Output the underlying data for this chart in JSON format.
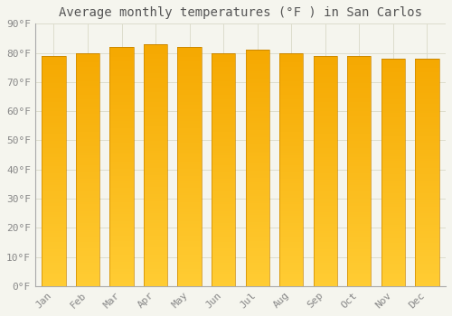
{
  "title": "Average monthly temperatures (°F ) in San Carlos",
  "months": [
    "Jan",
    "Feb",
    "Mar",
    "Apr",
    "May",
    "Jun",
    "Jul",
    "Aug",
    "Sep",
    "Oct",
    "Nov",
    "Dec"
  ],
  "values": [
    79,
    80,
    82,
    83,
    82,
    80,
    81,
    80,
    79,
    79,
    78,
    78
  ],
  "ylim": [
    0,
    90
  ],
  "ytick_step": 10,
  "bar_color_bottom": "#FFCC33",
  "bar_color_top": "#F5A800",
  "bar_edge_color": "#CC8800",
  "background_color": "#F5F5EE",
  "grid_color": "#DDDDCC",
  "title_fontsize": 10,
  "tick_fontsize": 8,
  "tick_label_color": "#888888",
  "title_color": "#555555",
  "bar_width": 0.7
}
